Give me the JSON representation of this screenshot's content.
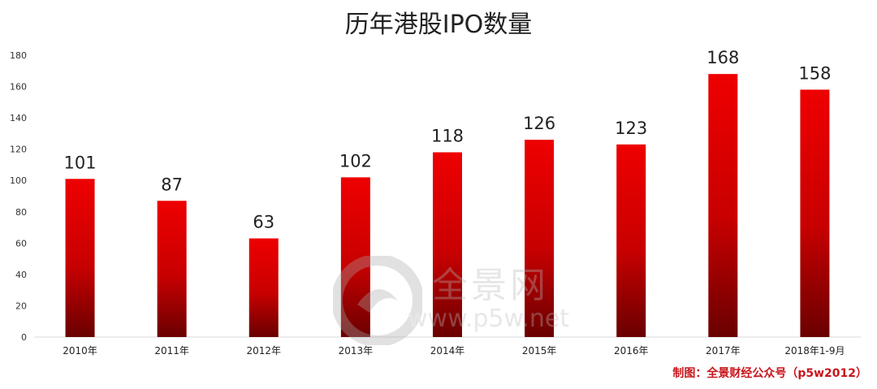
{
  "chart_data": {
    "type": "bar",
    "title": "历年港股IPO数量",
    "categories": [
      "2010年",
      "2011年",
      "2012年",
      "2013年",
      "2014年",
      "2015年",
      "2016年",
      "2017年",
      "2018年1-9月"
    ],
    "values": [
      101,
      87,
      63,
      102,
      118,
      126,
      123,
      168,
      158
    ],
    "xlabel": "",
    "ylabel": "",
    "ylim": [
      0,
      180
    ],
    "yticks": [
      0,
      20,
      40,
      60,
      80,
      100,
      120,
      140,
      160,
      180
    ],
    "grid": false,
    "legend": "none",
    "bar_color_top": "#ee0000",
    "bar_color_bottom": "#6a0000"
  },
  "watermark": {
    "brand": "全景网",
    "url": "www.p5w.net"
  },
  "credit": "制图：全景财经公众号（p5w2012）"
}
